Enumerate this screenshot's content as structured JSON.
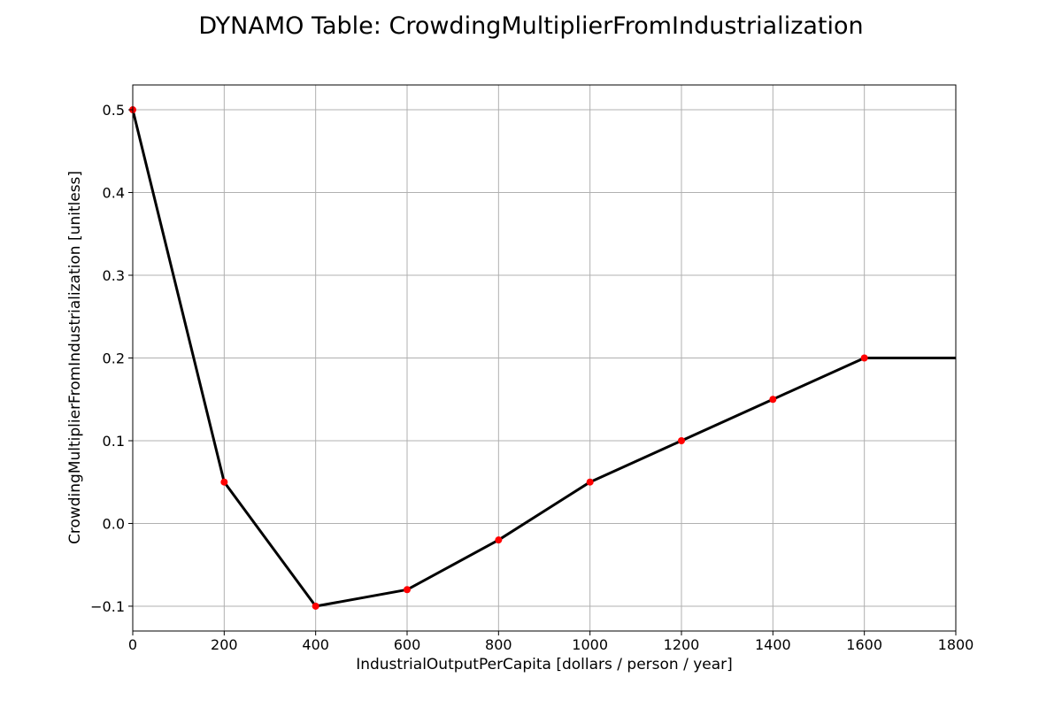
{
  "chart_data": {
    "type": "line",
    "title": "DYNAMO Table: CrowdingMultiplierFromIndustrialization",
    "xlabel": "IndustrialOutputPerCapita [dollars / person / year]",
    "ylabel": "CrowdingMultiplierFromIndustrialization [unitless]",
    "xlim": [
      0,
      1800
    ],
    "ylim": [
      -0.13,
      0.53
    ],
    "xticks": [
      0,
      200,
      400,
      600,
      800,
      1000,
      1200,
      1400,
      1600,
      1800
    ],
    "xtick_labels": [
      "0",
      "200",
      "400",
      "600",
      "800",
      "1000",
      "1200",
      "1400",
      "1600",
      "1800"
    ],
    "yticks": [
      -0.1,
      0.0,
      0.1,
      0.2,
      0.3,
      0.4,
      0.5
    ],
    "ytick_labels": [
      "−0.1",
      "0.0",
      "0.1",
      "0.2",
      "0.3",
      "0.4",
      "0.5"
    ],
    "grid": true,
    "line": {
      "x": [
        0,
        200,
        400,
        600,
        800,
        1000,
        1200,
        1400,
        1600,
        1800
      ],
      "y": [
        0.5,
        0.05,
        -0.1,
        -0.08,
        -0.02,
        0.05,
        0.1,
        0.15,
        0.2,
        0.2
      ],
      "color": "#000000"
    },
    "points": {
      "x": [
        0,
        200,
        400,
        600,
        800,
        1000,
        1200,
        1400,
        1600
      ],
      "y": [
        0.5,
        0.05,
        -0.1,
        -0.08,
        -0.02,
        0.05,
        0.1,
        0.15,
        0.2
      ],
      "color": "#ff0000"
    }
  }
}
